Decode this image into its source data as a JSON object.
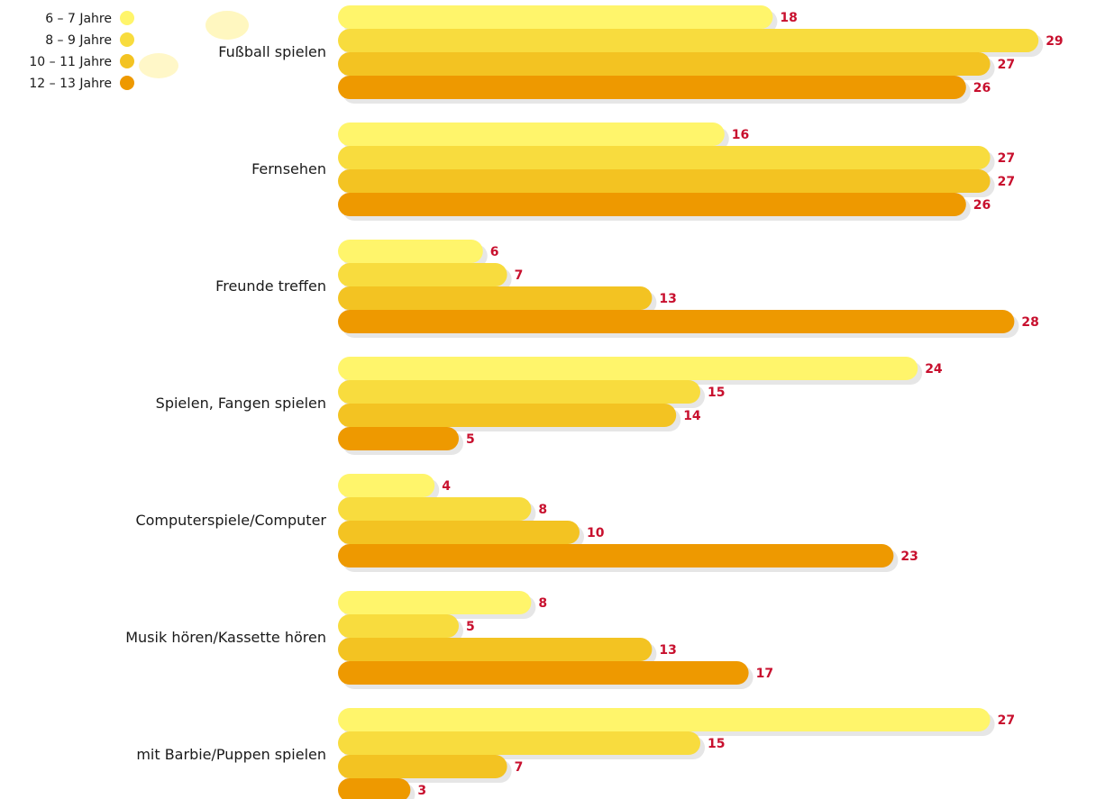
{
  "chart_data": {
    "type": "bar",
    "orientation": "horizontal",
    "categories": [
      "Fußball spielen",
      "Fernsehen",
      "Freunde treffen",
      "Spielen, Fangen spielen",
      "Computerspiele/Computer",
      "Musik hören/Kassette hören",
      "mit Barbie/Puppen spielen"
    ],
    "series": [
      {
        "name": "6 – 7 Jahre",
        "color": "#FFF56B",
        "values": [
          18,
          16,
          6,
          24,
          4,
          8,
          27
        ]
      },
      {
        "name": "8 – 9 Jahre",
        "color": "#F8DC3E",
        "values": [
          29,
          27,
          7,
          15,
          8,
          5,
          15
        ]
      },
      {
        "name": "10 – 11 Jahre",
        "color": "#F3C322",
        "values": [
          27,
          27,
          13,
          14,
          10,
          13,
          7
        ]
      },
      {
        "name": "12 – 13 Jahre",
        "color": "#EE9900",
        "values": [
          26,
          26,
          28,
          5,
          23,
          17,
          3
        ]
      }
    ],
    "xlim": [
      0,
      29
    ],
    "legend_position": "top-left",
    "grid": false,
    "value_label_color": "#C8102E"
  }
}
